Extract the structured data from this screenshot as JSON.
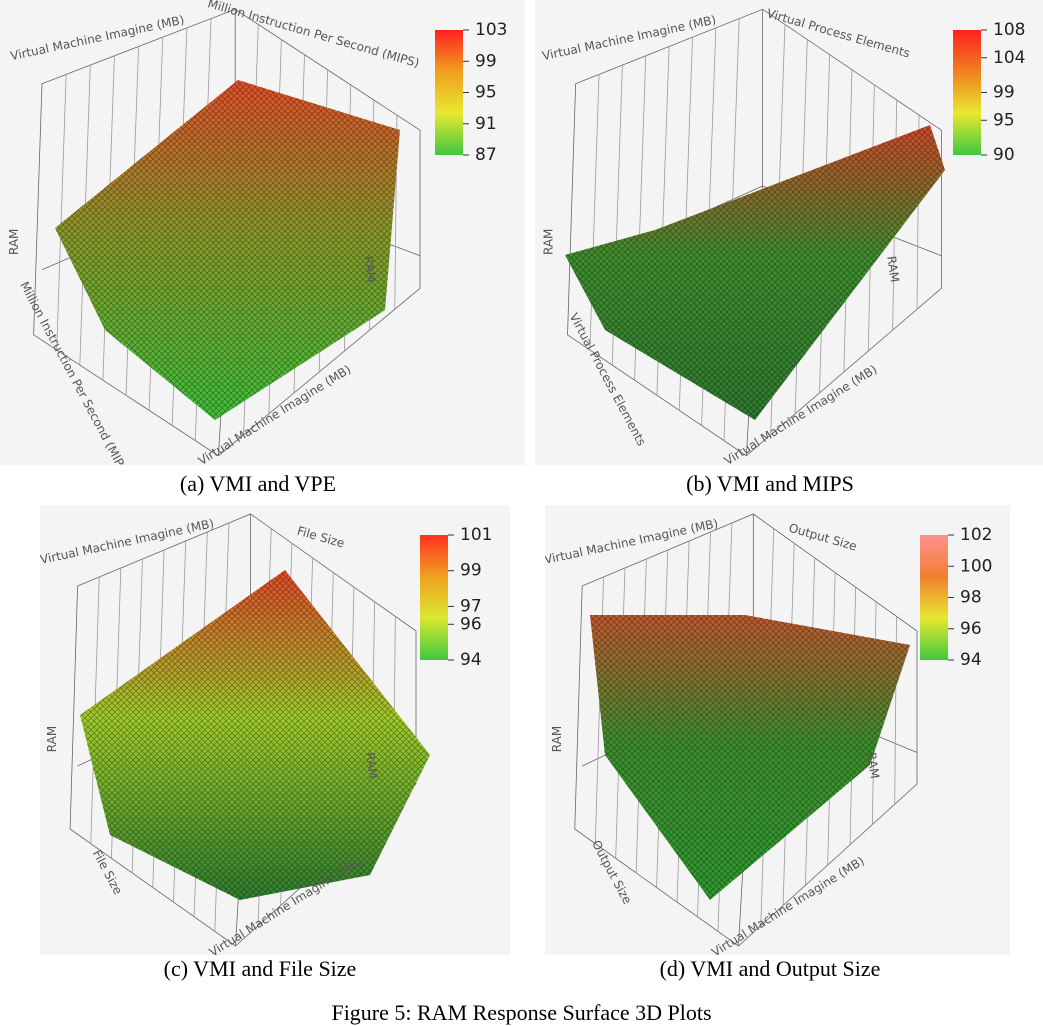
{
  "panels": [
    {
      "axis_labels": [
        "Virtual Machine Imagine (MB)",
        "Million Instruction Per Second (MIPS)",
        "RAM",
        "RAM",
        "Million Instruction Per Second (MIPS)",
        "Virtual Machine Imagine (MB)"
      ],
      "colorbar_ticks": [
        87,
        91,
        95,
        99,
        103
      ],
      "caption": "(a) VMI and VPE"
    },
    {
      "axis_labels": [
        "Virtual Machine Imagine (MB)",
        "Virtual Process Elements",
        "RAM",
        "RAM",
        "Virtual Process Elements",
        "Virtual Machine Imagine (MB)"
      ],
      "colorbar_ticks": [
        90,
        95,
        99,
        104,
        108
      ],
      "caption": "(b) VMI and MIPS"
    },
    {
      "axis_labels": [
        "Virtual Machine Imagine (MB)",
        "File Size",
        "RAM",
        "RAM",
        "File Size",
        "Virtual Machine Imagine (MB)"
      ],
      "colorbar_ticks": [
        94,
        96,
        97,
        99,
        101
      ],
      "caption": "(c) VMI and File Size"
    },
    {
      "axis_labels": [
        "Virtual Machine Imagine (MB)",
        "Output Size",
        "RAM",
        "RAM",
        "Output Size",
        "Virtual Machine Imagine (MB)"
      ],
      "colorbar_ticks": [
        94,
        96,
        98,
        100,
        102
      ],
      "caption": "(d) VMI and Output Size"
    }
  ],
  "figure_caption": "Figure 5:  RAM Response Surface 3D Plots"
}
